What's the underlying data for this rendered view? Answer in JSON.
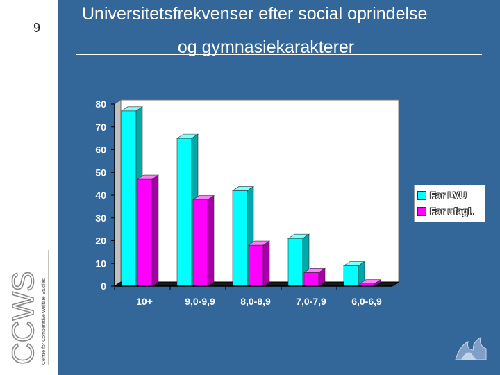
{
  "slide": {
    "number": "9"
  },
  "title": {
    "line1": "Universitetsfrekvenser efter social oprindelse",
    "line2": "og gymnasiekarakterer"
  },
  "logo": {
    "letters": "CCWS",
    "text": "Centre for Comparative Welfare Studies"
  },
  "colors": {
    "background": "#336699",
    "series1": "#00ffff",
    "series2": "#ff00ff",
    "plot_wall": "#ffffff",
    "sidebar": "#ffffff"
  },
  "chart_data": {
    "type": "bar",
    "categories": [
      "10+",
      "9,0-9,9",
      "8,0-8,9",
      "7,0-7,9",
      "6,0-6,9"
    ],
    "series": [
      {
        "name": "Far LVU",
        "values": [
          77,
          65,
          42,
          21,
          9
        ]
      },
      {
        "name": "Far ufagl.",
        "values": [
          47,
          38,
          18,
          6,
          1
        ]
      }
    ],
    "ylim": [
      0,
      80
    ],
    "yticks": [
      0,
      10,
      20,
      30,
      40,
      50,
      60,
      70,
      80
    ],
    "grid": false,
    "legend": "right",
    "style": "3d"
  },
  "corner_icon": "university-logo-icon"
}
